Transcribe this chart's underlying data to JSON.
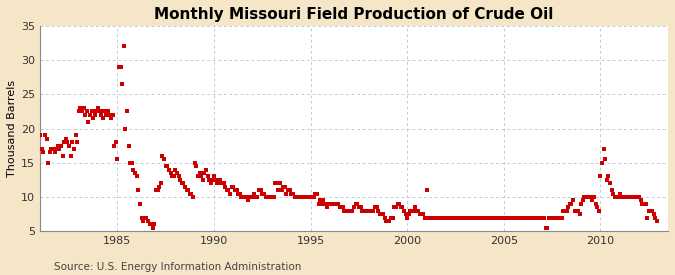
{
  "title": "Monthly Missouri Field Production of Crude Oil",
  "ylabel": "Thousand Barrels",
  "source": "Source: U.S. Energy Information Administration",
  "background_color": "#f5e6c8",
  "plot_bg_color": "#ffffff",
  "marker_color": "#cc0000",
  "marker_size": 7,
  "xlim": [
    1981.0,
    2013.5
  ],
  "ylim": [
    5,
    35
  ],
  "yticks": [
    5,
    10,
    15,
    20,
    25,
    30,
    35
  ],
  "xticks": [
    1985,
    1990,
    1995,
    2000,
    2005,
    2010
  ],
  "grid_color": "#a0b8d0",
  "title_fontsize": 11,
  "axis_fontsize": 8,
  "source_fontsize": 7.5,
  "data": [
    [
      1981.0,
      19.0
    ],
    [
      1981.083,
      17.0
    ],
    [
      1981.167,
      16.5
    ],
    [
      1981.25,
      19.0
    ],
    [
      1981.333,
      18.5
    ],
    [
      1981.417,
      15.0
    ],
    [
      1981.5,
      16.5
    ],
    [
      1981.583,
      17.0
    ],
    [
      1981.667,
      17.0
    ],
    [
      1981.75,
      16.5
    ],
    [
      1981.833,
      17.0
    ],
    [
      1981.917,
      17.5
    ],
    [
      1982.0,
      17.0
    ],
    [
      1982.083,
      17.5
    ],
    [
      1982.167,
      16.0
    ],
    [
      1982.25,
      18.0
    ],
    [
      1982.333,
      18.5
    ],
    [
      1982.417,
      18.0
    ],
    [
      1982.5,
      17.5
    ],
    [
      1982.583,
      16.0
    ],
    [
      1982.667,
      18.0
    ],
    [
      1982.75,
      17.0
    ],
    [
      1982.833,
      19.0
    ],
    [
      1982.917,
      18.0
    ],
    [
      1983.0,
      22.5
    ],
    [
      1983.083,
      23.0
    ],
    [
      1983.167,
      22.5
    ],
    [
      1983.25,
      23.0
    ],
    [
      1983.333,
      22.0
    ],
    [
      1983.417,
      22.5
    ],
    [
      1983.5,
      21.0
    ],
    [
      1983.583,
      22.0
    ],
    [
      1983.667,
      22.5
    ],
    [
      1983.75,
      21.5
    ],
    [
      1983.833,
      22.0
    ],
    [
      1983.917,
      22.5
    ],
    [
      1984.0,
      23.0
    ],
    [
      1984.083,
      22.5
    ],
    [
      1984.167,
      22.0
    ],
    [
      1984.25,
      21.5
    ],
    [
      1984.333,
      22.5
    ],
    [
      1984.417,
      22.0
    ],
    [
      1984.5,
      22.5
    ],
    [
      1984.583,
      22.0
    ],
    [
      1984.667,
      21.5
    ],
    [
      1984.75,
      22.0
    ],
    [
      1984.833,
      17.5
    ],
    [
      1984.917,
      18.0
    ],
    [
      1985.0,
      15.5
    ],
    [
      1985.083,
      29.0
    ],
    [
      1985.167,
      29.0
    ],
    [
      1985.25,
      26.5
    ],
    [
      1985.333,
      32.0
    ],
    [
      1985.417,
      20.0
    ],
    [
      1985.5,
      22.5
    ],
    [
      1985.583,
      17.5
    ],
    [
      1985.667,
      15.0
    ],
    [
      1985.75,
      15.0
    ],
    [
      1985.833,
      14.0
    ],
    [
      1985.917,
      13.5
    ],
    [
      1986.0,
      13.0
    ],
    [
      1986.083,
      11.0
    ],
    [
      1986.167,
      9.0
    ],
    [
      1986.25,
      7.0
    ],
    [
      1986.333,
      6.5
    ],
    [
      1986.417,
      7.0
    ],
    [
      1986.5,
      7.0
    ],
    [
      1986.583,
      6.5
    ],
    [
      1986.667,
      6.0
    ],
    [
      1986.75,
      6.0
    ],
    [
      1986.833,
      5.5
    ],
    [
      1986.917,
      6.0
    ],
    [
      1987.0,
      11.0
    ],
    [
      1987.083,
      11.0
    ],
    [
      1987.167,
      11.5
    ],
    [
      1987.25,
      12.0
    ],
    [
      1987.333,
      16.0
    ],
    [
      1987.417,
      15.5
    ],
    [
      1987.5,
      14.5
    ],
    [
      1987.583,
      14.5
    ],
    [
      1987.667,
      14.0
    ],
    [
      1987.75,
      13.5
    ],
    [
      1987.833,
      13.0
    ],
    [
      1987.917,
      13.0
    ],
    [
      1988.0,
      14.0
    ],
    [
      1988.083,
      13.5
    ],
    [
      1988.167,
      13.0
    ],
    [
      1988.25,
      12.5
    ],
    [
      1988.333,
      12.0
    ],
    [
      1988.417,
      12.0
    ],
    [
      1988.5,
      11.5
    ],
    [
      1988.583,
      11.0
    ],
    [
      1988.667,
      11.0
    ],
    [
      1988.75,
      10.5
    ],
    [
      1988.833,
      10.5
    ],
    [
      1988.917,
      10.0
    ],
    [
      1989.0,
      15.0
    ],
    [
      1989.083,
      14.5
    ],
    [
      1989.167,
      13.0
    ],
    [
      1989.25,
      13.5
    ],
    [
      1989.333,
      13.0
    ],
    [
      1989.417,
      12.5
    ],
    [
      1989.5,
      13.5
    ],
    [
      1989.583,
      14.0
    ],
    [
      1989.667,
      13.0
    ],
    [
      1989.75,
      12.5
    ],
    [
      1989.833,
      12.0
    ],
    [
      1989.917,
      12.5
    ],
    [
      1990.0,
      13.0
    ],
    [
      1990.083,
      12.5
    ],
    [
      1990.167,
      12.0
    ],
    [
      1990.25,
      12.0
    ],
    [
      1990.333,
      12.5
    ],
    [
      1990.417,
      12.0
    ],
    [
      1990.5,
      12.0
    ],
    [
      1990.583,
      11.5
    ],
    [
      1990.667,
      11.0
    ],
    [
      1990.75,
      11.0
    ],
    [
      1990.833,
      10.5
    ],
    [
      1990.917,
      11.5
    ],
    [
      1991.0,
      11.5
    ],
    [
      1991.083,
      11.0
    ],
    [
      1991.167,
      11.0
    ],
    [
      1991.25,
      10.5
    ],
    [
      1991.333,
      10.5
    ],
    [
      1991.417,
      10.0
    ],
    [
      1991.5,
      10.0
    ],
    [
      1991.583,
      10.0
    ],
    [
      1991.667,
      10.0
    ],
    [
      1991.75,
      9.5
    ],
    [
      1991.833,
      10.0
    ],
    [
      1991.917,
      10.0
    ],
    [
      1992.0,
      10.0
    ],
    [
      1992.083,
      10.5
    ],
    [
      1992.167,
      10.0
    ],
    [
      1992.25,
      10.0
    ],
    [
      1992.333,
      11.0
    ],
    [
      1992.417,
      11.0
    ],
    [
      1992.5,
      10.5
    ],
    [
      1992.583,
      10.5
    ],
    [
      1992.667,
      10.0
    ],
    [
      1992.75,
      10.0
    ],
    [
      1992.833,
      10.0
    ],
    [
      1992.917,
      10.0
    ],
    [
      1993.0,
      10.0
    ],
    [
      1993.083,
      10.0
    ],
    [
      1993.167,
      12.0
    ],
    [
      1993.25,
      12.0
    ],
    [
      1993.333,
      11.0
    ],
    [
      1993.417,
      12.0
    ],
    [
      1993.5,
      11.0
    ],
    [
      1993.583,
      11.5
    ],
    [
      1993.667,
      11.5
    ],
    [
      1993.75,
      10.5
    ],
    [
      1993.833,
      11.0
    ],
    [
      1993.917,
      11.0
    ],
    [
      1994.0,
      10.5
    ],
    [
      1994.083,
      10.5
    ],
    [
      1994.167,
      10.0
    ],
    [
      1994.25,
      10.0
    ],
    [
      1994.333,
      10.0
    ],
    [
      1994.417,
      10.0
    ],
    [
      1994.5,
      10.0
    ],
    [
      1994.583,
      10.0
    ],
    [
      1994.667,
      10.0
    ],
    [
      1994.75,
      10.0
    ],
    [
      1994.833,
      10.0
    ],
    [
      1994.917,
      10.0
    ],
    [
      1995.0,
      10.0
    ],
    [
      1995.083,
      10.0
    ],
    [
      1995.167,
      10.0
    ],
    [
      1995.25,
      10.5
    ],
    [
      1995.333,
      10.5
    ],
    [
      1995.417,
      9.0
    ],
    [
      1995.5,
      9.5
    ],
    [
      1995.583,
      9.0
    ],
    [
      1995.667,
      9.5
    ],
    [
      1995.75,
      9.0
    ],
    [
      1995.833,
      8.5
    ],
    [
      1995.917,
      9.0
    ],
    [
      1996.0,
      9.0
    ],
    [
      1996.083,
      9.0
    ],
    [
      1996.167,
      9.0
    ],
    [
      1996.25,
      9.0
    ],
    [
      1996.333,
      9.0
    ],
    [
      1996.417,
      9.0
    ],
    [
      1996.5,
      8.5
    ],
    [
      1996.583,
      8.5
    ],
    [
      1996.667,
      8.5
    ],
    [
      1996.75,
      8.0
    ],
    [
      1996.833,
      8.0
    ],
    [
      1996.917,
      8.0
    ],
    [
      1997.0,
      8.0
    ],
    [
      1997.083,
      8.0
    ],
    [
      1997.167,
      8.0
    ],
    [
      1997.25,
      8.5
    ],
    [
      1997.333,
      9.0
    ],
    [
      1997.417,
      9.0
    ],
    [
      1997.5,
      8.5
    ],
    [
      1997.583,
      8.5
    ],
    [
      1997.667,
      8.0
    ],
    [
      1997.75,
      8.0
    ],
    [
      1997.833,
      8.0
    ],
    [
      1997.917,
      8.0
    ],
    [
      1998.0,
      8.0
    ],
    [
      1998.083,
      8.0
    ],
    [
      1998.167,
      8.0
    ],
    [
      1998.25,
      8.0
    ],
    [
      1998.333,
      8.5
    ],
    [
      1998.417,
      8.5
    ],
    [
      1998.5,
      8.0
    ],
    [
      1998.583,
      7.5
    ],
    [
      1998.667,
      7.5
    ],
    [
      1998.75,
      7.5
    ],
    [
      1998.833,
      7.0
    ],
    [
      1998.917,
      6.5
    ],
    [
      1999.0,
      6.5
    ],
    [
      1999.083,
      6.5
    ],
    [
      1999.167,
      7.0
    ],
    [
      1999.25,
      7.0
    ],
    [
      1999.333,
      8.5
    ],
    [
      1999.417,
      8.5
    ],
    [
      1999.5,
      9.0
    ],
    [
      1999.583,
      9.0
    ],
    [
      1999.667,
      8.5
    ],
    [
      1999.75,
      8.5
    ],
    [
      1999.833,
      8.0
    ],
    [
      1999.917,
      7.5
    ],
    [
      2000.0,
      7.0
    ],
    [
      2000.083,
      7.5
    ],
    [
      2000.167,
      8.0
    ],
    [
      2000.25,
      8.0
    ],
    [
      2000.333,
      8.0
    ],
    [
      2000.417,
      8.5
    ],
    [
      2000.5,
      8.0
    ],
    [
      2000.583,
      8.0
    ],
    [
      2000.667,
      7.5
    ],
    [
      2000.75,
      7.5
    ],
    [
      2000.833,
      7.5
    ],
    [
      2000.917,
      7.0
    ],
    [
      2001.0,
      11.0
    ],
    [
      2001.083,
      7.0
    ],
    [
      2001.167,
      7.0
    ],
    [
      2001.25,
      7.0
    ],
    [
      2001.333,
      7.0
    ],
    [
      2001.417,
      7.0
    ],
    [
      2001.5,
      7.0
    ],
    [
      2001.583,
      7.0
    ],
    [
      2001.667,
      7.0
    ],
    [
      2001.75,
      7.0
    ],
    [
      2001.833,
      7.0
    ],
    [
      2001.917,
      7.0
    ],
    [
      2002.0,
      7.0
    ],
    [
      2002.083,
      7.0
    ],
    [
      2002.167,
      7.0
    ],
    [
      2002.25,
      7.0
    ],
    [
      2002.333,
      7.0
    ],
    [
      2002.417,
      7.0
    ],
    [
      2002.5,
      7.0
    ],
    [
      2002.583,
      7.0
    ],
    [
      2002.667,
      7.0
    ],
    [
      2002.75,
      7.0
    ],
    [
      2002.833,
      7.0
    ],
    [
      2002.917,
      7.0
    ],
    [
      2003.0,
      7.0
    ],
    [
      2003.083,
      7.0
    ],
    [
      2003.167,
      7.0
    ],
    [
      2003.25,
      7.0
    ],
    [
      2003.333,
      7.0
    ],
    [
      2003.417,
      7.0
    ],
    [
      2003.5,
      7.0
    ],
    [
      2003.583,
      7.0
    ],
    [
      2003.667,
      7.0
    ],
    [
      2003.75,
      7.0
    ],
    [
      2003.833,
      7.0
    ],
    [
      2003.917,
      7.0
    ],
    [
      2004.0,
      7.0
    ],
    [
      2004.083,
      7.0
    ],
    [
      2004.167,
      7.0
    ],
    [
      2004.25,
      7.0
    ],
    [
      2004.333,
      7.0
    ],
    [
      2004.417,
      7.0
    ],
    [
      2004.5,
      7.0
    ],
    [
      2004.583,
      7.0
    ],
    [
      2004.667,
      7.0
    ],
    [
      2004.75,
      7.0
    ],
    [
      2004.833,
      7.0
    ],
    [
      2004.917,
      7.0
    ],
    [
      2005.0,
      7.0
    ],
    [
      2005.083,
      7.0
    ],
    [
      2005.167,
      7.0
    ],
    [
      2005.25,
      7.0
    ],
    [
      2005.333,
      7.0
    ],
    [
      2005.417,
      7.0
    ],
    [
      2005.5,
      7.0
    ],
    [
      2005.583,
      7.0
    ],
    [
      2005.667,
      7.0
    ],
    [
      2005.75,
      7.0
    ],
    [
      2005.833,
      7.0
    ],
    [
      2005.917,
      7.0
    ],
    [
      2006.0,
      7.0
    ],
    [
      2006.083,
      7.0
    ],
    [
      2006.167,
      7.0
    ],
    [
      2006.25,
      7.0
    ],
    [
      2006.333,
      7.0
    ],
    [
      2006.417,
      7.0
    ],
    [
      2006.5,
      7.0
    ],
    [
      2006.583,
      7.0
    ],
    [
      2006.667,
      7.0
    ],
    [
      2006.75,
      7.0
    ],
    [
      2006.833,
      7.0
    ],
    [
      2006.917,
      7.0
    ],
    [
      2007.0,
      7.0
    ],
    [
      2007.083,
      7.0
    ],
    [
      2007.167,
      5.5
    ],
    [
      2007.25,
      5.5
    ],
    [
      2007.333,
      7.0
    ],
    [
      2007.417,
      7.0
    ],
    [
      2007.5,
      7.0
    ],
    [
      2007.583,
      7.0
    ],
    [
      2007.667,
      7.0
    ],
    [
      2007.75,
      7.0
    ],
    [
      2007.833,
      7.0
    ],
    [
      2007.917,
      7.0
    ],
    [
      2008.0,
      7.0
    ],
    [
      2008.083,
      8.0
    ],
    [
      2008.167,
      8.0
    ],
    [
      2008.25,
      8.0
    ],
    [
      2008.333,
      8.5
    ],
    [
      2008.417,
      9.0
    ],
    [
      2008.5,
      9.0
    ],
    [
      2008.583,
      9.5
    ],
    [
      2008.667,
      8.0
    ],
    [
      2008.75,
      8.0
    ],
    [
      2008.833,
      8.0
    ],
    [
      2008.917,
      7.5
    ],
    [
      2009.0,
      9.0
    ],
    [
      2009.083,
      9.5
    ],
    [
      2009.167,
      10.0
    ],
    [
      2009.25,
      10.0
    ],
    [
      2009.333,
      10.0
    ],
    [
      2009.417,
      10.0
    ],
    [
      2009.5,
      10.0
    ],
    [
      2009.583,
      9.5
    ],
    [
      2009.667,
      10.0
    ],
    [
      2009.75,
      9.0
    ],
    [
      2009.833,
      8.5
    ],
    [
      2009.917,
      8.0
    ],
    [
      2010.0,
      13.0
    ],
    [
      2010.083,
      15.0
    ],
    [
      2010.167,
      17.0
    ],
    [
      2010.25,
      15.5
    ],
    [
      2010.333,
      12.5
    ],
    [
      2010.417,
      13.0
    ],
    [
      2010.5,
      12.0
    ],
    [
      2010.583,
      11.0
    ],
    [
      2010.667,
      10.5
    ],
    [
      2010.75,
      10.0
    ],
    [
      2010.833,
      10.0
    ],
    [
      2010.917,
      10.0
    ],
    [
      2011.0,
      10.5
    ],
    [
      2011.083,
      10.0
    ],
    [
      2011.167,
      10.0
    ],
    [
      2011.25,
      10.0
    ],
    [
      2011.333,
      10.0
    ],
    [
      2011.417,
      10.0
    ],
    [
      2011.5,
      10.0
    ],
    [
      2011.583,
      10.0
    ],
    [
      2011.667,
      10.0
    ],
    [
      2011.75,
      10.0
    ],
    [
      2011.833,
      10.0
    ],
    [
      2011.917,
      10.0
    ],
    [
      2012.0,
      10.0
    ],
    [
      2012.083,
      9.5
    ],
    [
      2012.167,
      9.0
    ],
    [
      2012.25,
      9.0
    ],
    [
      2012.333,
      9.0
    ],
    [
      2012.417,
      7.0
    ],
    [
      2012.5,
      8.0
    ],
    [
      2012.583,
      8.0
    ],
    [
      2012.667,
      8.0
    ],
    [
      2012.75,
      7.5
    ],
    [
      2012.833,
      7.0
    ],
    [
      2012.917,
      6.5
    ]
  ]
}
